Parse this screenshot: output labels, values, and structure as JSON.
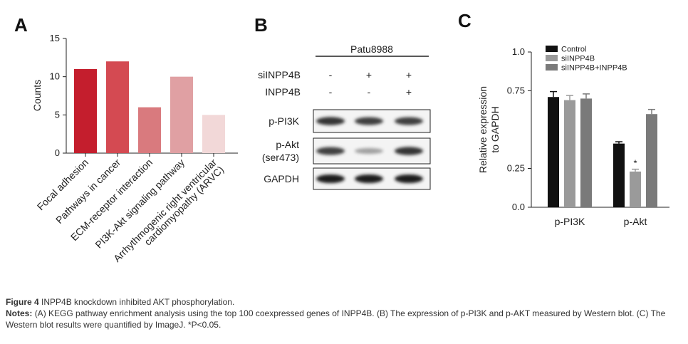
{
  "panels": {
    "a_letter": "A",
    "b_letter": "B",
    "c_letter": "C"
  },
  "chart_data": [
    {
      "type": "bar",
      "ylabel": "Counts",
      "ylim": [
        0,
        15
      ],
      "yticks": [
        0,
        5,
        10,
        15
      ],
      "grid": false,
      "categories": [
        "Focal adhesion",
        "Pathways in cancer",
        "ECM-receptor interaction",
        "PI3K-Akt signaling pathway",
        "Arrhythmogenic right ventricular cardiomyopathy (ARVC)"
      ],
      "category_lines": [
        [
          "Focal adhesion"
        ],
        [
          "Pathways in cancer"
        ],
        [
          "ECM-receptor interaction"
        ],
        [
          "PI3K-Akt signaling pathway"
        ],
        [
          "Arrhythmogenic right ventricular",
          "cardiomyopathy (ARVC)"
        ]
      ],
      "values": [
        11,
        12,
        6,
        10,
        5
      ],
      "colors": [
        "#c41e2d",
        "#d44a52",
        "#d97a7e",
        "#e0a0a3",
        "#f2d8d8"
      ]
    },
    {
      "type": "bar",
      "ylabel": "Relative expression to GAPDH",
      "ylabel_lines": [
        "Relative expression",
        "to GAPDH"
      ],
      "ylim": [
        0,
        1.0
      ],
      "yticks": [
        "0.0",
        "0.25",
        "0.75",
        "1.0"
      ],
      "ytick_values": [
        0,
        0.25,
        0.75,
        1.0
      ],
      "grid": false,
      "legend_position": "top-left",
      "categories": [
        "p-PI3K",
        "p-Akt"
      ],
      "series": [
        {
          "name": "Control",
          "color": "#111111",
          "values": [
            0.71,
            0.41
          ],
          "errors": [
            0.035,
            0.012
          ]
        },
        {
          "name": "siINPP4B",
          "color": "#9a9a9a",
          "values": [
            0.69,
            0.23
          ],
          "errors": [
            0.03,
            0.015
          ]
        },
        {
          "name": "siINPP4B+INPP4B",
          "color": "#7a7a7a",
          "values": [
            0.7,
            0.6
          ],
          "errors": [
            0.03,
            0.03
          ]
        }
      ],
      "annotations": [
        {
          "text": "*",
          "category": "p-Akt",
          "series": "siINPP4B"
        }
      ]
    }
  ],
  "blot": {
    "cell_line": "Patu8988",
    "rows": [
      {
        "label": "siINPP4B",
        "marks": [
          "-",
          "+",
          "+"
        ]
      },
      {
        "label": "INPP4B",
        "marks": [
          "-",
          "-",
          "+"
        ]
      }
    ],
    "bands": [
      {
        "label_lines": [
          "p-PI3K"
        ],
        "intensities": [
          0.85,
          0.8,
          0.8
        ]
      },
      {
        "label_lines": [
          "p-Akt",
          "(ser473)"
        ],
        "intensities": [
          0.8,
          0.35,
          0.85
        ]
      },
      {
        "label_lines": [
          "GAPDH"
        ],
        "intensities": [
          0.95,
          0.95,
          0.95
        ]
      }
    ]
  },
  "caption": {
    "figure_label": "Figure 4",
    "title": "INPP4B knockdown inhibited AKT phosphorylation.",
    "notes_label": "Notes:",
    "notes_text": "(A) KEGG pathway enrichment analysis using the top 100 coexpressed genes of INPP4B. (B) The expression of p-PI3K and p-AKT measured by Western blot. (C) The Western blot results were quantified by ImageJ. *P<0.05."
  }
}
